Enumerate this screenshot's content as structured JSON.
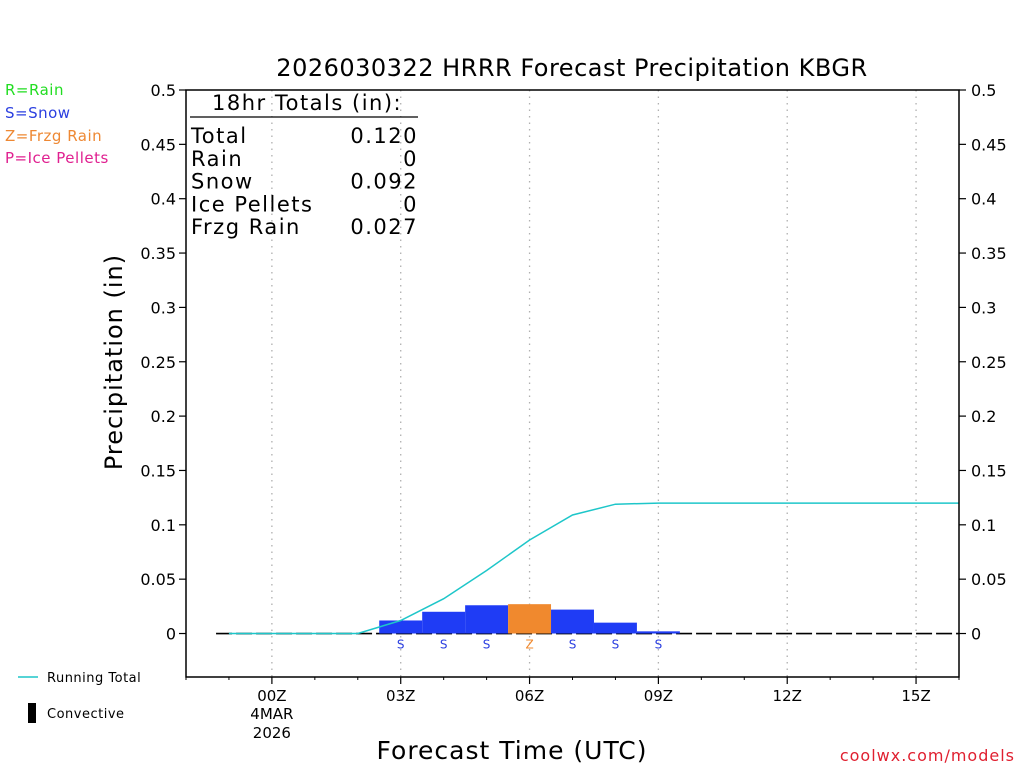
{
  "legend": {
    "items": [
      {
        "label": "R=Rain",
        "color": "#22dd22"
      },
      {
        "label": "S=Snow",
        "color": "#2a3ee0"
      },
      {
        "label": "Z=Frzg Rain",
        "color": "#ee8833"
      },
      {
        "label": "P=Ice Pellets",
        "color": "#e02090"
      }
    ],
    "running_total_label": "Running Total",
    "convective_label": "Convective"
  },
  "footer": {
    "credit": "coolwx.com/models"
  },
  "colors": {
    "snow": "#1f3cf5",
    "frzg_rain": "#f0892e",
    "running_total": "#1ec6c9",
    "credit": "#e02030",
    "axis": "#000000"
  },
  "chart_data": {
    "type": "bar",
    "title": "2026030322 HRRR Forecast Precipitation KBGR",
    "xlabel": "Forecast Time (UTC)",
    "ylabel": "Precipitation (in)",
    "ylim": [
      -0.04,
      0.5
    ],
    "y_ticks": [
      0,
      0.05,
      0.1,
      0.15,
      0.2,
      0.25,
      0.3,
      0.35,
      0.4,
      0.45,
      0.5
    ],
    "y_tick_labels": [
      "0",
      "0.05",
      "0.1",
      "0.15",
      "0.2",
      "0.25",
      "0.3",
      "0.35",
      "0.4",
      "0.45",
      "0.5"
    ],
    "xlim_hours": [
      -2,
      16
    ],
    "x_ticks": [
      {
        "hour": 0,
        "label": "00Z",
        "sub1": "4MAR",
        "sub2": "2026"
      },
      {
        "hour": 3,
        "label": "03Z",
        "sub1": "",
        "sub2": ""
      },
      {
        "hour": 6,
        "label": "06Z",
        "sub1": "",
        "sub2": ""
      },
      {
        "hour": 9,
        "label": "09Z",
        "sub1": "",
        "sub2": ""
      },
      {
        "hour": 12,
        "label": "12Z",
        "sub1": "",
        "sub2": ""
      },
      {
        "hour": 15,
        "label": "15Z",
        "sub1": "",
        "sub2": ""
      }
    ],
    "grid": "vertical dotted at x ticks",
    "bars": [
      {
        "hour": 3,
        "value": 0.012,
        "type": "S"
      },
      {
        "hour": 4,
        "value": 0.02,
        "type": "S"
      },
      {
        "hour": 5,
        "value": 0.026,
        "type": "S"
      },
      {
        "hour": 6,
        "value": 0.027,
        "type": "Z"
      },
      {
        "hour": 7,
        "value": 0.022,
        "type": "S"
      },
      {
        "hour": 8,
        "value": 0.01,
        "type": "S"
      },
      {
        "hour": 9,
        "value": 0.002,
        "type": "S"
      }
    ],
    "running_total": {
      "hours": [
        -1,
        0,
        1,
        2,
        3,
        4,
        5,
        6,
        7,
        8,
        9,
        10,
        11,
        12,
        13,
        14,
        15,
        16
      ],
      "values": [
        0,
        0,
        0,
        0,
        0.012,
        0.032,
        0.058,
        0.086,
        0.109,
        0.119,
        0.12,
        0.12,
        0.12,
        0.12,
        0.12,
        0.12,
        0.12,
        0.12
      ]
    },
    "totals": {
      "header": "18hr Totals (in):",
      "rows": [
        {
          "label": "Total",
          "value": "0.120"
        },
        {
          "label": "Rain",
          "value": "0"
        },
        {
          "label": "Snow",
          "value": "0.092"
        },
        {
          "label": "Ice Pellets",
          "value": "0"
        },
        {
          "label": "Frzg Rain",
          "value": "0.027"
        }
      ]
    }
  }
}
